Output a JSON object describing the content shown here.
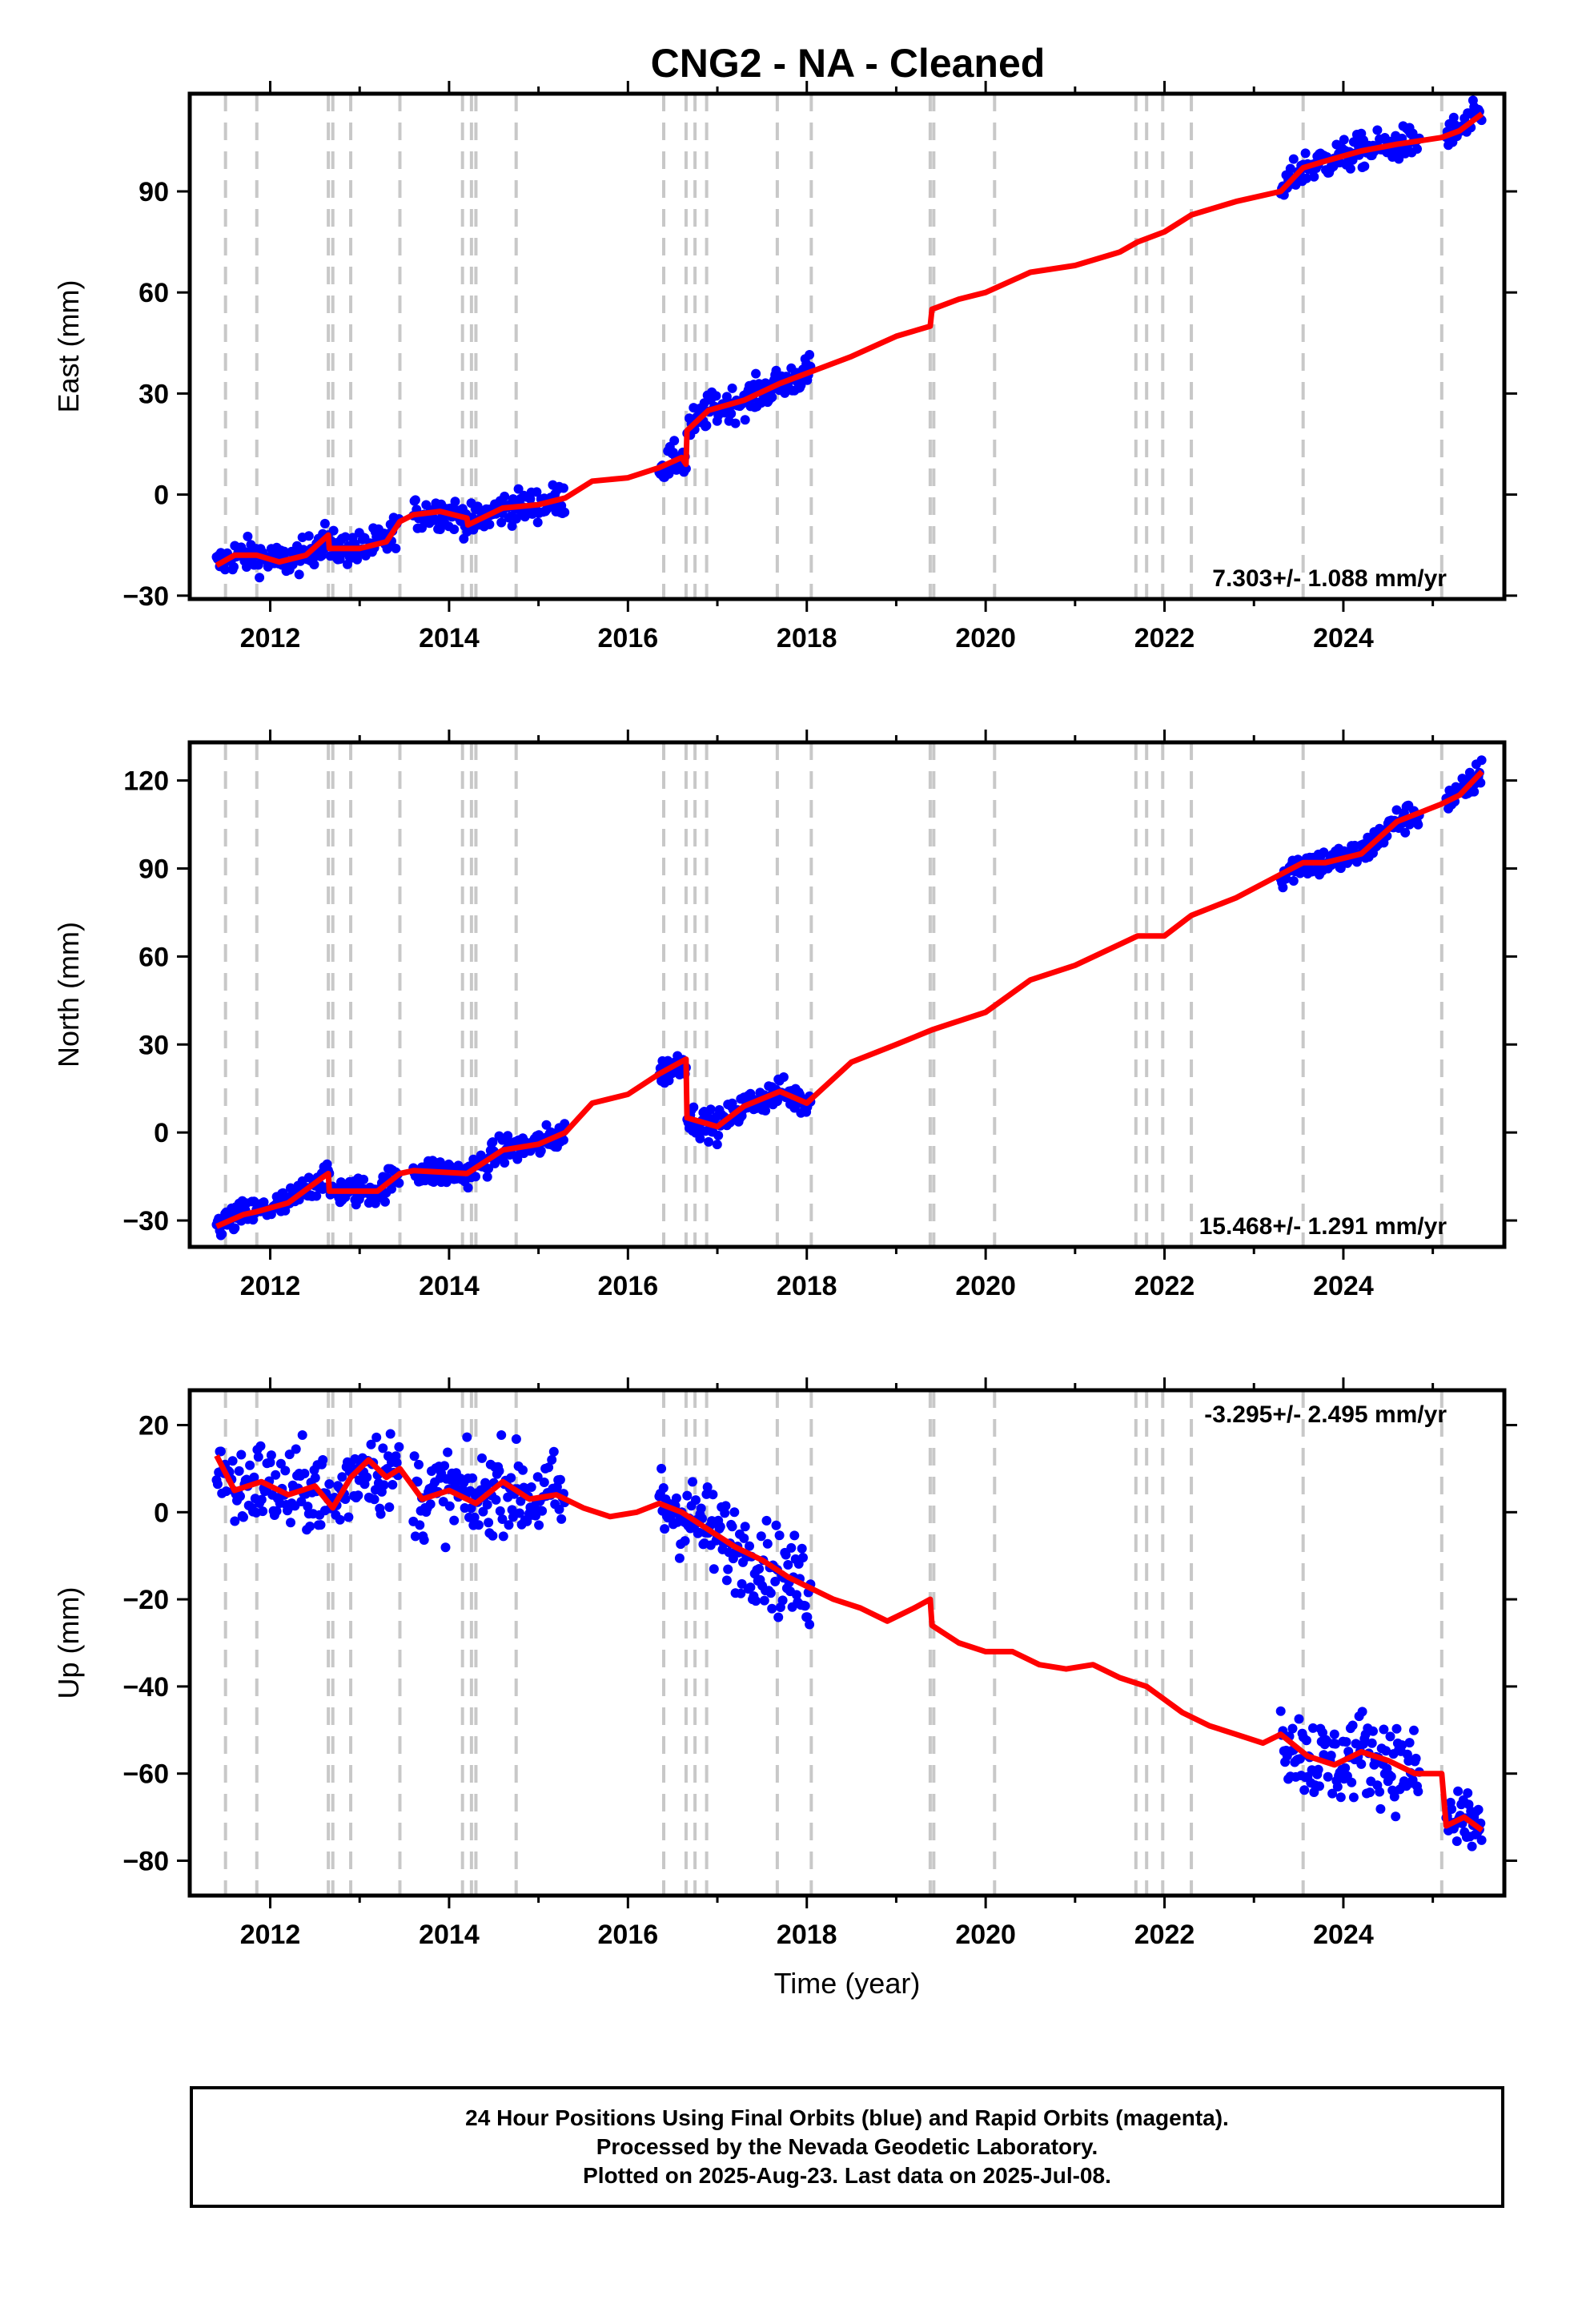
{
  "title": "CNG2  - NA - Cleaned",
  "colors": {
    "data_points": "#0000ff",
    "model_line": "#ff0000",
    "break_lines": "#c8c8c8",
    "frame": "#000000"
  },
  "chart_data": [
    {
      "type": "scatter",
      "panel": "east",
      "ylabel": "East (mm)",
      "xlabel": "",
      "rate_text": "7.303+/- 1.088 mm/yr",
      "rate_position": "bottom-right",
      "xlim": [
        2011.1,
        2025.8
      ],
      "ylim": [
        -31,
        119
      ],
      "xticks": [
        2012,
        2014,
        2016,
        2018,
        2020,
        2022,
        2024
      ],
      "xtick_labels": [
        "2012",
        "2014",
        "2016",
        "2018",
        "2020",
        "2022",
        "2024"
      ],
      "yticks": [
        -30,
        0,
        30,
        60,
        90
      ],
      "ytick_labels": [
        "−30",
        "0",
        "30",
        "60",
        "90"
      ],
      "scatter_noise": 3.5,
      "data_segments": [
        [
          2011.4,
          2013.45
        ],
        [
          2013.6,
          2015.3
        ],
        [
          2016.35,
          2018.05
        ],
        [
          2023.3,
          2024.85
        ],
        [
          2025.15,
          2025.55
        ]
      ],
      "model_series": {
        "name": "model",
        "x": [
          2011.4,
          2011.6,
          2011.85,
          2012.1,
          2012.4,
          2012.65,
          2012.66,
          2013.0,
          2013.3,
          2013.45,
          2013.6,
          2013.9,
          2014.2,
          2014.21,
          2014.6,
          2015.0,
          2015.3,
          2015.6,
          2016.0,
          2016.35,
          2016.6,
          2016.65,
          2016.66,
          2016.9,
          2017.3,
          2017.7,
          2018.0,
          2018.5,
          2019.0,
          2019.38,
          2019.4,
          2019.7,
          2020.0,
          2020.5,
          2021.0,
          2021.5,
          2021.7,
          2022.0,
          2022.3,
          2022.8,
          2023.3,
          2023.55,
          2023.8,
          2024.2,
          2024.6,
          2025.1,
          2025.3,
          2025.55
        ],
        "y": [
          -21,
          -18,
          -18,
          -20,
          -18,
          -12,
          -16,
          -16,
          -14,
          -8,
          -6,
          -5,
          -7,
          -9,
          -4,
          -3,
          -1,
          4,
          5,
          8,
          11,
          9,
          19,
          25,
          28,
          33,
          36,
          41,
          47,
          50,
          55,
          58,
          60,
          66,
          68,
          72,
          75,
          78,
          83,
          87,
          90,
          97,
          99,
          102,
          104,
          106,
          108,
          113
        ]
      }
    },
    {
      "type": "scatter",
      "panel": "north",
      "ylabel": "North (mm)",
      "xlabel": "",
      "rate_text": "15.468+/- 1.291 mm/yr",
      "rate_position": "bottom-right",
      "xlim": [
        2011.1,
        2025.8
      ],
      "ylim": [
        -39,
        133
      ],
      "xticks": [
        2012,
        2014,
        2016,
        2018,
        2020,
        2022,
        2024
      ],
      "xtick_labels": [
        "2012",
        "2014",
        "2016",
        "2018",
        "2020",
        "2022",
        "2024"
      ],
      "yticks": [
        -30,
        0,
        30,
        60,
        90,
        120
      ],
      "ytick_labels": [
        "−30",
        "0",
        "30",
        "60",
        "90",
        "120"
      ],
      "scatter_noise": 3.5,
      "data_segments": [
        [
          2011.4,
          2013.45
        ],
        [
          2013.6,
          2015.3
        ],
        [
          2016.35,
          2018.05
        ],
        [
          2023.3,
          2024.85
        ],
        [
          2025.15,
          2025.55
        ]
      ],
      "model_series": {
        "name": "model",
        "x": [
          2011.4,
          2011.7,
          2011.85,
          2012.2,
          2012.6,
          2012.65,
          2012.66,
          2013.2,
          2013.45,
          2013.6,
          2014.2,
          2014.6,
          2015.0,
          2015.3,
          2015.6,
          2016.0,
          2016.35,
          2016.65,
          2016.66,
          2017.0,
          2017.3,
          2017.7,
          2018.0,
          2018.5,
          2019.0,
          2019.4,
          2019.6,
          2020.0,
          2020.5,
          2021.0,
          2021.7,
          2022.0,
          2022.3,
          2022.8,
          2023.3,
          2023.55,
          2023.8,
          2024.2,
          2024.6,
          2025.1,
          2025.3,
          2025.55
        ],
        "y": [
          -32,
          -28,
          -27,
          -24,
          -15,
          -14,
          -20,
          -20,
          -14,
          -13,
          -14,
          -6,
          -4,
          0,
          10,
          13,
          20,
          25,
          5,
          2,
          9,
          14,
          10,
          24,
          30,
          35,
          37,
          41,
          52,
          57,
          67,
          67,
          74,
          80,
          88,
          92,
          92,
          95,
          106,
          112,
          115,
          123
        ]
      }
    },
    {
      "type": "scatter",
      "panel": "up",
      "ylabel": "Up (mm)",
      "xlabel": "Time (year)",
      "rate_text": "-3.295+/- 2.495 mm/yr",
      "rate_position": "top-right",
      "xlim": [
        2011.1,
        2025.8
      ],
      "ylim": [
        -88,
        28
      ],
      "xticks": [
        2012,
        2014,
        2016,
        2018,
        2020,
        2022,
        2024
      ],
      "xtick_labels": [
        "2012",
        "2014",
        "2016",
        "2018",
        "2020",
        "2022",
        "2024"
      ],
      "yticks": [
        -80,
        -60,
        -40,
        -20,
        0,
        20
      ],
      "ytick_labels": [
        "−80",
        "−60",
        "−40",
        "−20",
        "0",
        "20"
      ],
      "scatter_noise": 7,
      "data_segments": [
        [
          2011.4,
          2013.45
        ],
        [
          2013.6,
          2015.3
        ],
        [
          2016.35,
          2018.05
        ],
        [
          2023.3,
          2024.85
        ],
        [
          2025.15,
          2025.55
        ]
      ],
      "model_series": {
        "name": "model",
        "x": [
          2011.4,
          2011.6,
          2011.9,
          2012.2,
          2012.5,
          2012.7,
          2012.9,
          2013.1,
          2013.3,
          2013.45,
          2013.7,
          2014.0,
          2014.3,
          2014.6,
          2014.9,
          2015.2,
          2015.5,
          2015.8,
          2016.1,
          2016.35,
          2016.6,
          2016.9,
          2017.2,
          2017.5,
          2017.8,
          2018.0,
          2018.3,
          2018.6,
          2018.9,
          2019.2,
          2019.38,
          2019.4,
          2019.7,
          2020.0,
          2020.3,
          2020.6,
          2020.9,
          2021.2,
          2021.5,
          2021.8,
          2022.0,
          2022.2,
          2022.5,
          2022.8,
          2023.1,
          2023.3,
          2023.6,
          2023.9,
          2024.2,
          2024.5,
          2024.8,
          2025.1,
          2025.15,
          2025.35,
          2025.55
        ],
        "y": [
          13,
          5,
          7,
          4,
          6,
          1,
          8,
          12,
          8,
          10,
          3,
          5,
          2,
          7,
          3,
          4,
          1,
          -1,
          0,
          2,
          0,
          -4,
          -8,
          -11,
          -15,
          -17,
          -20,
          -22,
          -25,
          -22,
          -20,
          -26,
          -30,
          -32,
          -32,
          -35,
          -36,
          -35,
          -38,
          -40,
          -43,
          -46,
          -49,
          -51,
          -53,
          -51,
          -56,
          -58,
          -55,
          -57,
          -60,
          -60,
          -72,
          -70,
          -73
        ]
      }
    }
  ],
  "break_lines_years": [
    2011.5,
    2011.85,
    2012.65,
    2012.7,
    2012.9,
    2013.45,
    2014.15,
    2014.25,
    2014.3,
    2014.75,
    2016.4,
    2016.65,
    2016.75,
    2016.88,
    2017.67,
    2018.05,
    2019.38,
    2019.42,
    2020.1,
    2021.68,
    2021.8,
    2021.98,
    2022.3,
    2023.55,
    2025.1
  ],
  "footer": {
    "line1": "24 Hour Positions Using Final Orbits (blue) and Rapid Orbits (magenta).",
    "line2": "Processed by the Nevada Geodetic Laboratory.",
    "line3": "Plotted on 2025-Aug-23. Last data on 2025-Jul-08."
  }
}
